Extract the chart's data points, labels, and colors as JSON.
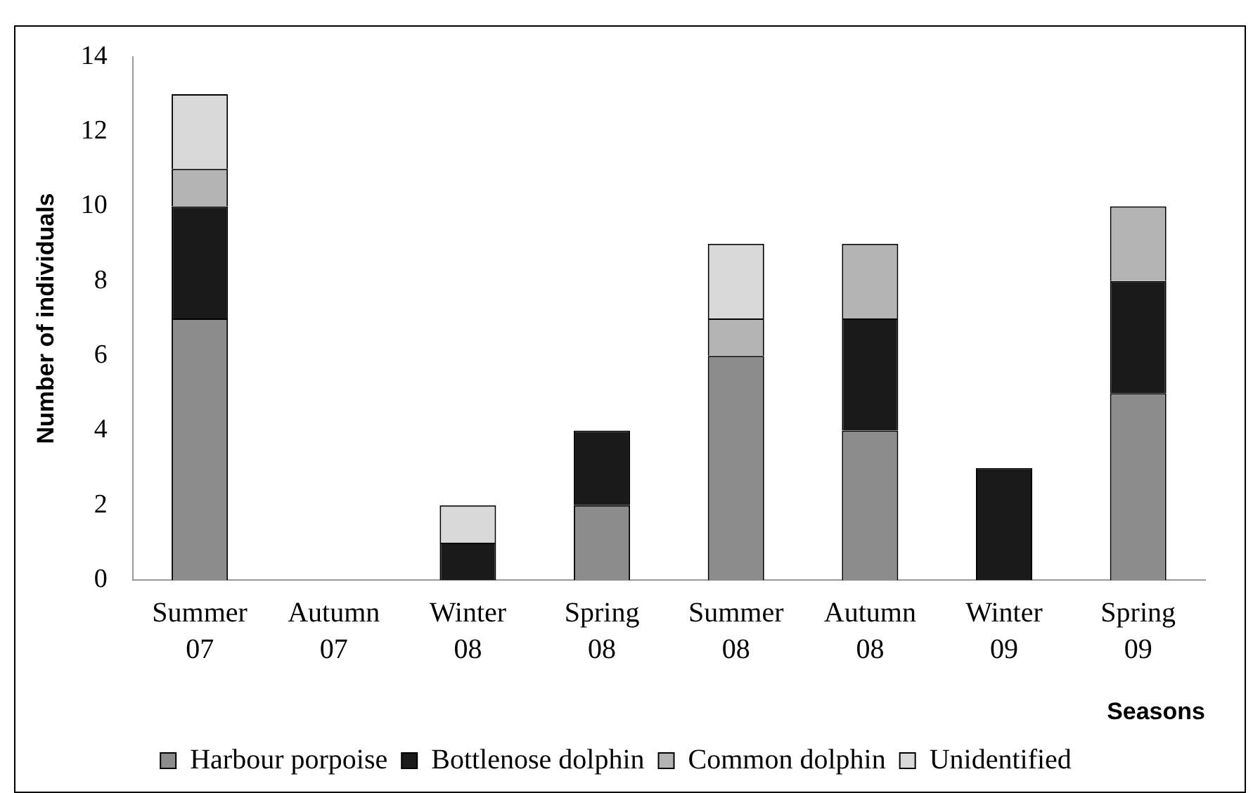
{
  "chart_data": {
    "type": "bar",
    "stacked": true,
    "xlabel": "Seasons",
    "ylabel": "Number of individuals",
    "categories": [
      "Summer 07",
      "Autumn 07",
      "Winter 08",
      "Spring 08",
      "Summer 08",
      "Autumn 08",
      "Winter 09",
      "Spring 09"
    ],
    "series": [
      {
        "name": "Harbour porpoise",
        "color": "#8c8c8c",
        "values": [
          7,
          0,
          0,
          2,
          6,
          4,
          0,
          5
        ]
      },
      {
        "name": "Bottlenose dolphin",
        "color": "#1a1a1a",
        "values": [
          3,
          0,
          1,
          2,
          0,
          3,
          3,
          3
        ]
      },
      {
        "name": "Common dolphin",
        "color": "#b4b4b4",
        "values": [
          1,
          0,
          0,
          0,
          1,
          2,
          0,
          2
        ]
      },
      {
        "name": "Unidentified",
        "color": "#d9d9d9",
        "values": [
          2,
          0,
          1,
          0,
          2,
          0,
          0,
          0
        ]
      }
    ],
    "ylim": [
      0,
      14
    ],
    "yticks": [
      0,
      2,
      4,
      6,
      8,
      10,
      12,
      14
    ],
    "grid": false,
    "legend": "bottom"
  }
}
